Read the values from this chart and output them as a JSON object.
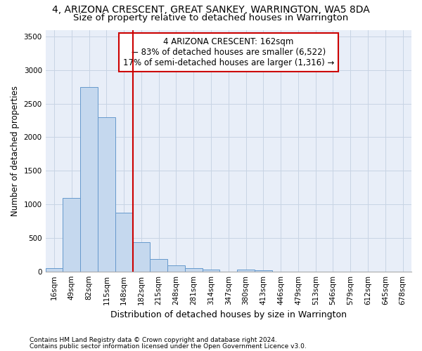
{
  "title": "4, ARIZONA CRESCENT, GREAT SANKEY, WARRINGTON, WA5 8DA",
  "subtitle": "Size of property relative to detached houses in Warrington",
  "xlabel": "Distribution of detached houses by size in Warrington",
  "ylabel": "Number of detached properties",
  "footnote1": "Contains HM Land Registry data © Crown copyright and database right 2024.",
  "footnote2": "Contains public sector information licensed under the Open Government Licence v3.0.",
  "annotation_line1": "4 ARIZONA CRESCENT: 162sqm",
  "annotation_line2": "← 83% of detached houses are smaller (6,522)",
  "annotation_line3": "17% of semi-detached houses are larger (1,316) →",
  "bar_color": "#c5d8ee",
  "bar_edge_color": "#6699cc",
  "grid_color": "#c8d4e4",
  "bg_color": "#e8eef8",
  "vline_color": "#cc0000",
  "categories": [
    "16sqm",
    "49sqm",
    "82sqm",
    "115sqm",
    "148sqm",
    "182sqm",
    "215sqm",
    "248sqm",
    "281sqm",
    "314sqm",
    "347sqm",
    "380sqm",
    "413sqm",
    "446sqm",
    "479sqm",
    "513sqm",
    "546sqm",
    "579sqm",
    "612sqm",
    "645sqm",
    "678sqm"
  ],
  "values": [
    50,
    1100,
    2750,
    2300,
    880,
    440,
    180,
    90,
    50,
    30,
    0,
    30,
    20,
    0,
    0,
    0,
    0,
    0,
    0,
    0,
    0
  ],
  "ylim": [
    0,
    3600
  ],
  "yticks": [
    0,
    500,
    1000,
    1500,
    2000,
    2500,
    3000,
    3500
  ],
  "vline_x": 4.5,
  "title_fontsize": 10,
  "subtitle_fontsize": 9.5,
  "xlabel_fontsize": 9,
  "ylabel_fontsize": 8.5,
  "tick_fontsize": 7.5,
  "annot_fontsize": 8.5,
  "footnote_fontsize": 6.5
}
